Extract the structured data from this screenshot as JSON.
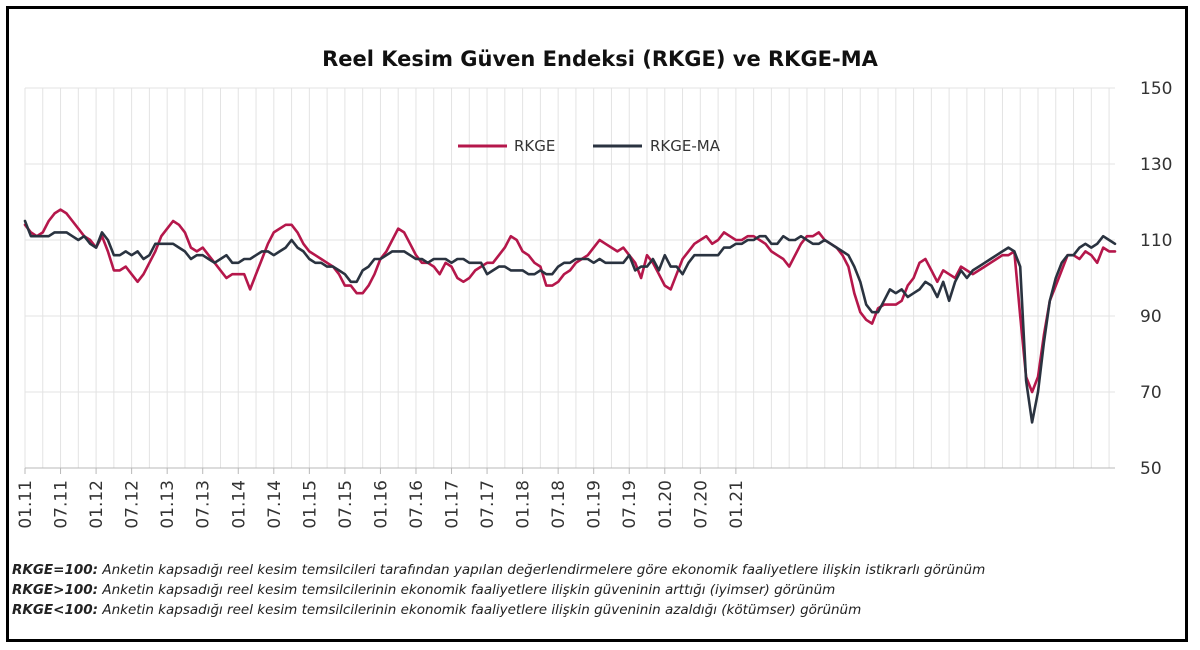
{
  "chart_data": {
    "type": "line",
    "title": "Reel Kesim Güven Endeksi (RKGE) ve RKGE-MA",
    "xlabel": "",
    "ylabel": "",
    "ylim": [
      50,
      150
    ],
    "yticks": [
      150,
      130,
      110,
      90,
      70,
      50
    ],
    "y_axis_position": "right",
    "grid": true,
    "legend_position": "top-center",
    "xtick_labels": [
      "01.11",
      "07.11",
      "01.12",
      "07.12",
      "01.13",
      "07.13",
      "01.14",
      "07.14",
      "01.15",
      "07.15",
      "01.16",
      "07.16",
      "01.17",
      "07.17",
      "01.18",
      "07.18",
      "01.19",
      "07.19",
      "01.20",
      "07.20",
      "01.21"
    ],
    "series": [
      {
        "name": "RKGE",
        "color": "#b5174b",
        "values": [
          114,
          112,
          111,
          112,
          115,
          117,
          118,
          117,
          115,
          113,
          111,
          110,
          108,
          111,
          107,
          102,
          102,
          103,
          101,
          99,
          101,
          104,
          107,
          111,
          113,
          115,
          114,
          112,
          108,
          107,
          108,
          106,
          104,
          102,
          100,
          101,
          101,
          101,
          97,
          101,
          105,
          109,
          112,
          113,
          114,
          114,
          112,
          109,
          107,
          106,
          105,
          104,
          103,
          101,
          98,
          98,
          96,
          96,
          98,
          101,
          105,
          107,
          110,
          113,
          112,
          109,
          106,
          104,
          104,
          103,
          101,
          104,
          103,
          100,
          99,
          100,
          102,
          103,
          104,
          104,
          106,
          108,
          111,
          110,
          107,
          106,
          104,
          103,
          98,
          98,
          99,
          101,
          102,
          104,
          105,
          106,
          108,
          110,
          109,
          108,
          107,
          108,
          106,
          104,
          100,
          106,
          104,
          101,
          98,
          97,
          101,
          105,
          107,
          109,
          110,
          111,
          109,
          110,
          112,
          111,
          110,
          110,
          111,
          111,
          110,
          109,
          107,
          106,
          105,
          103,
          106,
          109,
          111,
          111,
          112,
          110,
          109,
          108,
          106,
          103,
          96,
          91,
          89,
          88,
          92,
          93,
          93,
          93,
          94,
          98,
          100,
          104,
          105,
          102,
          99,
          102,
          101,
          100,
          103,
          102,
          101,
          102,
          103,
          104,
          105,
          106,
          106,
          107,
          90,
          74,
          70,
          74,
          85,
          94,
          98,
          102,
          106,
          106,
          105,
          107,
          106,
          104,
          108,
          107,
          107
        ]
      },
      {
        "name": "RKGE-MA",
        "color": "#2a3340",
        "values": [
          115,
          111,
          111,
          111,
          111,
          112,
          112,
          112,
          111,
          110,
          111,
          109,
          108,
          112,
          110,
          106,
          106,
          107,
          106,
          107,
          105,
          106,
          109,
          109,
          109,
          109,
          108,
          107,
          105,
          106,
          106,
          105,
          104,
          105,
          106,
          104,
          104,
          105,
          105,
          106,
          107,
          107,
          106,
          107,
          108,
          110,
          108,
          107,
          105,
          104,
          104,
          103,
          103,
          102,
          101,
          99,
          99,
          102,
          103,
          105,
          105,
          106,
          107,
          107,
          107,
          106,
          105,
          105,
          104,
          105,
          105,
          105,
          104,
          105,
          105,
          104,
          104,
          104,
          101,
          102,
          103,
          103,
          102,
          102,
          102,
          101,
          101,
          102,
          101,
          101,
          103,
          104,
          104,
          105,
          105,
          105,
          104,
          105,
          104,
          104,
          104,
          104,
          106,
          102,
          103,
          103,
          105,
          102,
          106,
          103,
          103,
          101,
          104,
          106,
          106,
          106,
          106,
          106,
          108,
          108,
          109,
          109,
          110,
          110,
          111,
          111,
          109,
          109,
          111,
          110,
          110,
          111,
          110,
          109,
          109,
          110,
          109,
          108,
          107,
          106,
          103,
          99,
          93,
          91,
          91,
          94,
          97,
          96,
          97,
          95,
          96,
          97,
          99,
          98,
          95,
          99,
          94,
          99,
          102,
          100,
          102,
          103,
          104,
          105,
          106,
          107,
          108,
          107,
          103,
          73,
          62,
          70,
          83,
          94,
          100,
          104,
          106,
          106,
          108,
          109,
          108,
          109,
          111,
          110,
          109
        ]
      }
    ],
    "footnotes": [
      {
        "key": "RKGE=100:",
        "text": " Anketin kapsadığı reel kesim temsilcileri tarafından yapılan değerlendirmelere göre ekonomik faaliyetlere ilişkin istikrarlı görünüm"
      },
      {
        "key": "RKGE>100:",
        "text": " Anketin kapsadığı reel kesim temsilcilerinin ekonomik faaliyetlere ilişkin güveninin arttığı (iyimser) görünüm"
      },
      {
        "key": "RKGE<100:",
        "text": " Anketin kapsadığı reel kesim temsilcilerinin ekonomik faaliyetlere ilişkin güveninin azaldığı (kötümser) görünüm"
      }
    ]
  }
}
